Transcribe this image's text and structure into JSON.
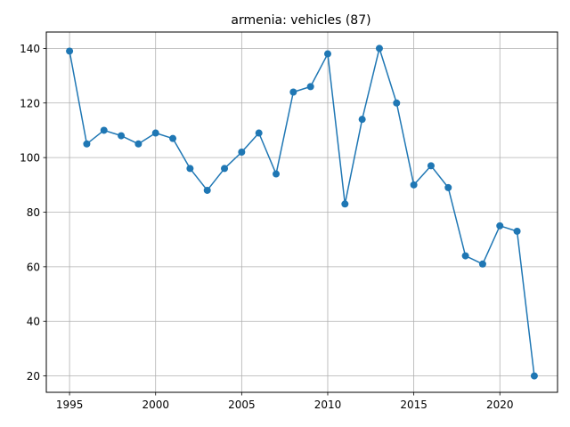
{
  "chart_data": {
    "type": "line",
    "title": "armenia: vehicles (87)",
    "xlabel": "",
    "ylabel": "",
    "x": [
      1995,
      1996,
      1997,
      1998,
      1999,
      2000,
      2001,
      2002,
      2003,
      2004,
      2005,
      2006,
      2007,
      2008,
      2009,
      2010,
      2011,
      2012,
      2013,
      2014,
      2015,
      2016,
      2017,
      2018,
      2019,
      2020,
      2021,
      2022
    ],
    "series": [
      {
        "values": [
          139,
          105,
          110,
          108,
          105,
          109,
          107,
          96,
          88,
          96,
          102,
          109,
          94,
          124,
          126,
          138,
          83,
          114,
          140,
          120,
          90,
          97,
          89,
          64,
          61,
          75,
          73,
          20
        ]
      }
    ],
    "xlim": [
      1993.65,
      2023.35
    ],
    "ylim": [
      14,
      146
    ],
    "xticks": [
      1995,
      2000,
      2005,
      2010,
      2015,
      2020
    ],
    "yticks": [
      20,
      40,
      60,
      80,
      100,
      120,
      140
    ],
    "grid": true,
    "marker": "circle",
    "color": "#1f77b4"
  }
}
